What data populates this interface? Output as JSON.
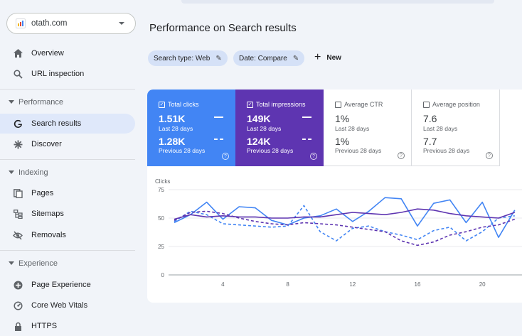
{
  "property": {
    "name": "otath.com",
    "logo_colors": [
      "#f4b400",
      "#db4437",
      "#4285f4"
    ]
  },
  "sidebar": {
    "items": [
      {
        "label": "Overview"
      },
      {
        "label": "URL inspection"
      },
      {
        "label": "Search results"
      },
      {
        "label": "Discover"
      },
      {
        "label": "Pages"
      },
      {
        "label": "Sitemaps"
      },
      {
        "label": "Removals"
      },
      {
        "label": "Page Experience"
      },
      {
        "label": "Core Web Vitals"
      },
      {
        "label": "HTTPS"
      }
    ],
    "sections": {
      "performance": "Performance",
      "indexing": "Indexing",
      "experience": "Experience"
    },
    "active_item": "Search results"
  },
  "page": {
    "title": "Performance on Search results"
  },
  "filters": {
    "search_type": "Search type: Web",
    "date": "Date: Compare",
    "new_label": "New"
  },
  "metrics": {
    "clicks": {
      "label": "Total clicks",
      "value_current": "1.51K",
      "period_current": "Last 28 days",
      "value_previous": "1.28K",
      "period_previous": "Previous 28 days",
      "checked": true,
      "color": "#4285f4"
    },
    "impressions": {
      "label": "Total impressions",
      "value_current": "149K",
      "period_current": "Last 28 days",
      "value_previous": "124K",
      "period_previous": "Previous 28 days",
      "checked": true,
      "color": "#5e35b1"
    },
    "ctr": {
      "label": "Average CTR",
      "value_current": "1%",
      "period_current": "Last 28 days",
      "value_previous": "1%",
      "period_previous": "Previous 28 days",
      "checked": false
    },
    "position": {
      "label": "Average position",
      "value_current": "7.6",
      "period_current": "Last 28 days",
      "value_previous": "7.7",
      "period_previous": "Previous 28 days",
      "checked": false
    }
  },
  "chart_data": {
    "type": "line",
    "ylabel": "Clicks",
    "ylim": [
      0,
      75
    ],
    "yticks": [
      0,
      25,
      50,
      75
    ],
    "xticks": [
      4,
      8,
      12,
      16,
      20
    ],
    "x": [
      1,
      2,
      3,
      4,
      5,
      6,
      7,
      8,
      9,
      10,
      11,
      12,
      13,
      14,
      15,
      16,
      17,
      18,
      19,
      20,
      21,
      22
    ],
    "grid": true,
    "series": [
      {
        "metric": "clicks",
        "period": "current",
        "color": "#4285f4",
        "style": "solid",
        "values": [
          46,
          53,
          64,
          49,
          60,
          59,
          48,
          44,
          50,
          52,
          58,
          47,
          56,
          68,
          67,
          43,
          63,
          66,
          46,
          64,
          33,
          57
        ]
      },
      {
        "metric": "clicks",
        "period": "previous",
        "color": "#4285f4",
        "style": "dashed",
        "values": [
          47,
          56,
          53,
          45,
          44,
          43,
          42,
          43,
          61,
          38,
          30,
          41,
          43,
          38,
          35,
          31,
          39,
          42,
          30,
          38,
          50,
          52
        ]
      },
      {
        "metric": "impressions",
        "period": "current",
        "color": "#5e35b1",
        "style": "solid",
        "values": [
          49,
          53,
          51,
          52,
          51,
          51,
          50,
          50,
          51,
          51,
          53,
          55,
          54,
          53,
          55,
          58,
          57,
          54,
          52,
          51,
          50,
          55
        ]
      },
      {
        "metric": "impressions",
        "period": "previous",
        "color": "#5e35b1",
        "style": "dashed",
        "values": [
          48,
          55,
          56,
          54,
          50,
          47,
          45,
          44,
          46,
          45,
          44,
          42,
          40,
          38,
          30,
          26,
          29,
          35,
          38,
          42,
          44,
          49
        ]
      }
    ]
  }
}
